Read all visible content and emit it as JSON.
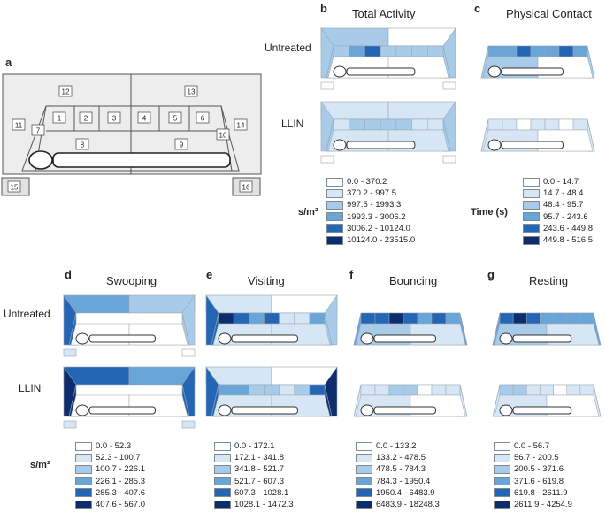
{
  "panel_a": {
    "letter": "a",
    "zones": [
      "12",
      "13",
      "11",
      "1",
      "2",
      "3",
      "4",
      "5",
      "6",
      "14",
      "7",
      "10",
      "8",
      "9",
      "15",
      "16"
    ]
  },
  "panel_b": {
    "letter": "b",
    "title": "Total Activity"
  },
  "panel_c": {
    "letter": "c",
    "title": "Physical Contact"
  },
  "panel_d": {
    "letter": "d",
    "title": "Swooping"
  },
  "panel_e": {
    "letter": "e",
    "title": "Visiting"
  },
  "panel_f": {
    "letter": "f",
    "title": "Bouncing"
  },
  "panel_g": {
    "letter": "g",
    "title": "Resting"
  },
  "row_labels": {
    "untreated": "Untreated",
    "llin": "LLIN"
  },
  "units": {
    "b": "s/m²",
    "c": "Time (s)",
    "d": "s/m²"
  },
  "colors": {
    "c0": "#ffffff",
    "c1": "#d6e6f5",
    "c2": "#a8cbe9",
    "c3": "#6aa5d8",
    "c4": "#2466b3",
    "c5": "#0e2d6e",
    "diagram_fill": "#ededed",
    "line": "#8c8c8c"
  },
  "legends": {
    "b": [
      "0.0 - 370.2",
      "370.2 - 997.5",
      "997.5 - 1993.3",
      "1993.3 - 3006.2",
      "3006.2 - 10124.0",
      "10124.0 - 23515.0"
    ],
    "c": [
      "0.0 - 14.7",
      "14.7 - 48.4",
      "48.4 - 95.7",
      "95.7 - 243.6",
      "243.6 - 449.8",
      "449.8 - 516.5"
    ],
    "d": [
      "0.0 - 52.3",
      "52.3 - 100.7",
      "100.7 - 226.1",
      "226.1 - 285.3",
      "285.3 - 407.6",
      "407.6 - 567.0"
    ],
    "e": [
      "0.0 - 172.1",
      "172.1 - 341.8",
      "341.8 - 521.7",
      "521.7 - 607.3",
      "607.3 - 1028.1",
      "1028.1 - 1472.3"
    ],
    "f": [
      "0.0 - 133.2",
      "133.2 - 478.5",
      "478.5 - 784.3",
      "784.3 - 1950.4",
      "1950.4 - 6483.9",
      "6483.9 - 18248.3"
    ],
    "g": [
      "0.0 - 56.7",
      "56.7 - 200.5",
      "200.5 - 371.6",
      "371.6 - 619.8",
      "619.8 - 2611.9",
      "2611.9 - 4254.9"
    ]
  },
  "zone_levels": {
    "b": {
      "untreated": {
        "roof": [
          2,
          0
        ],
        "bands": [
          2,
          3,
          4,
          2,
          2,
          2,
          2
        ],
        "sides": [
          2,
          2
        ],
        "floor": [
          0,
          0
        ],
        "boxes": [
          0,
          0
        ]
      },
      "llin": {
        "roof": [
          1,
          1
        ],
        "bands": [
          1,
          2,
          2,
          2,
          2,
          1,
          1
        ],
        "sides": [
          2,
          2
        ],
        "floor": [
          1,
          1
        ],
        "boxes": [
          0,
          0
        ]
      }
    },
    "c": {
      "untreated": {
        "bands": [
          3,
          3,
          4,
          3,
          3,
          4,
          3
        ],
        "sides": [
          2,
          2
        ],
        "floor": [
          2,
          0
        ]
      },
      "llin": {
        "bands": [
          1,
          1,
          0,
          1,
          1,
          0,
          1
        ],
        "sides": [
          1,
          1
        ],
        "floor": [
          1,
          0
        ]
      }
    },
    "d": {
      "untreated": {
        "roof": [
          3,
          2
        ],
        "sides": [
          4,
          2
        ],
        "floor": [
          0,
          0
        ],
        "boxes": [
          1,
          0
        ]
      },
      "llin": {
        "roof": [
          4,
          3
        ],
        "sides": [
          5,
          4
        ],
        "floor": [
          0,
          0
        ],
        "boxes": [
          1,
          1
        ]
      }
    },
    "e": {
      "untreated": {
        "roof": [
          1,
          0
        ],
        "bands": [
          5,
          4,
          3,
          4,
          1,
          1,
          3
        ],
        "sides": [
          4,
          2
        ],
        "floor": [
          1,
          1
        ]
      },
      "llin": {
        "roof": [
          1,
          0
        ],
        "bands": [
          3,
          3,
          2,
          2,
          1,
          2,
          4
        ],
        "sides": [
          4,
          5
        ],
        "floor": [
          1,
          1
        ]
      }
    },
    "f": {
      "untreated": {
        "bands": [
          4,
          4,
          5,
          4,
          3,
          4,
          3
        ],
        "sides": [
          3,
          3
        ],
        "floor": [
          2,
          1
        ]
      },
      "llin": {
        "bands": [
          1,
          1,
          2,
          2,
          0,
          1,
          1
        ],
        "sides": [
          1,
          1
        ],
        "floor": [
          1,
          0
        ]
      }
    },
    "g": {
      "untreated": {
        "bands": [
          4,
          5,
          4,
          3,
          3,
          3,
          3
        ],
        "sides": [
          3,
          3
        ],
        "floor": [
          2,
          1
        ]
      },
      "llin": {
        "bands": [
          2,
          2,
          1,
          1,
          0,
          1,
          1
        ],
        "sides": [
          1,
          1
        ],
        "floor": [
          1,
          0
        ]
      }
    }
  }
}
